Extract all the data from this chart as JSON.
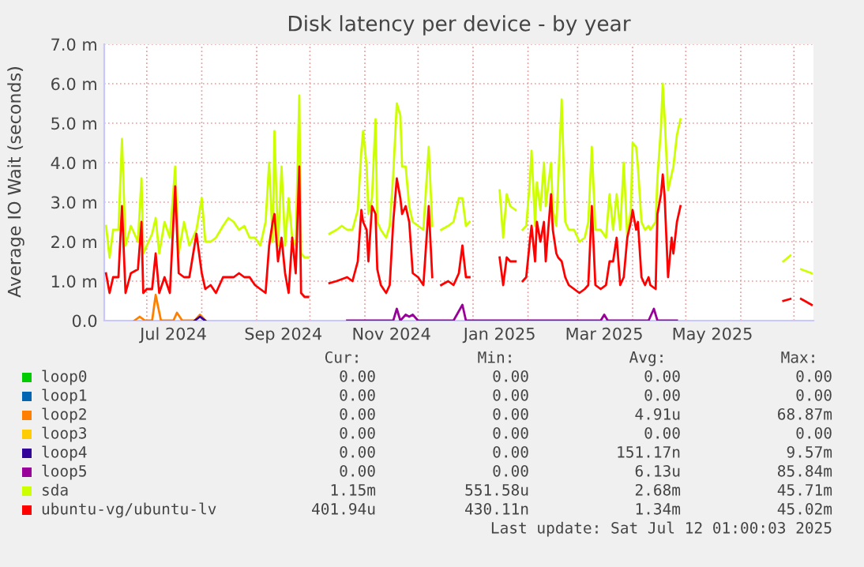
{
  "chart_data": {
    "type": "line",
    "title": "Disk latency per device - by year",
    "ylabel": "Average IO Wait (seconds)",
    "xlim": [
      "2024-06-07",
      "2025-07-12"
    ],
    "ylim": [
      0,
      7
    ],
    "yticks": [
      {
        "value": 0,
        "label": "0.0"
      },
      {
        "value": 1,
        "label": "1.0 m"
      },
      {
        "value": 2,
        "label": "2.0 m"
      },
      {
        "value": 3,
        "label": "3.0 m"
      },
      {
        "value": 4,
        "label": "4.0 m"
      },
      {
        "value": 5,
        "label": "5.0 m"
      },
      {
        "value": 6,
        "label": "6.0 m"
      },
      {
        "value": 7,
        "label": "7.0 m"
      }
    ],
    "xticks": [
      {
        "value": "2024-07-01",
        "label": null
      },
      {
        "value": "2024-07-16",
        "label": "Jul 2024"
      },
      {
        "value": "2024-08-01",
        "label": null
      },
      {
        "value": "2024-09-01",
        "label": null
      },
      {
        "value": "2024-09-16",
        "label": "Sep 2024"
      },
      {
        "value": "2024-10-01",
        "label": null
      },
      {
        "value": "2024-11-01",
        "label": null
      },
      {
        "value": "2024-11-16",
        "label": "Nov 2024"
      },
      {
        "value": "2024-12-01",
        "label": null
      },
      {
        "value": "2025-01-01",
        "label": null
      },
      {
        "value": "2025-01-16",
        "label": "Jan 2025"
      },
      {
        "value": "2025-02-01",
        "label": null
      },
      {
        "value": "2025-03-01",
        "label": null
      },
      {
        "value": "2025-03-16",
        "label": "Mar 2025"
      },
      {
        "value": "2025-04-01",
        "label": null
      },
      {
        "value": "2025-05-01",
        "label": null
      },
      {
        "value": "2025-05-16",
        "label": "May 2025"
      },
      {
        "value": "2025-06-01",
        "label": null
      },
      {
        "value": "2025-07-01",
        "label": null
      }
    ],
    "grid": true,
    "legend": "bottom",
    "x": [
      "2024-06-08",
      "2024-06-10",
      "2024-06-12",
      "2024-06-15",
      "2024-06-17",
      "2024-06-19",
      "2024-06-22",
      "2024-06-26",
      "2024-06-28",
      "2024-06-29",
      "2024-07-01",
      "2024-07-04",
      "2024-07-06",
      "2024-07-08",
      "2024-07-11",
      "2024-07-14",
      "2024-07-17",
      "2024-07-19",
      "2024-07-22",
      "2024-07-25",
      "2024-07-29",
      "2024-08-01",
      "2024-08-03",
      "2024-08-06",
      "2024-08-09",
      "2024-08-13",
      "2024-08-16",
      "2024-08-19",
      "2024-08-22",
      "2024-08-25",
      "2024-08-28",
      "2024-08-31",
      "2024-09-03",
      "2024-09-06",
      "2024-09-08",
      "2024-09-10",
      "2024-09-11",
      "2024-09-13",
      "2024-09-15",
      "2024-09-17",
      "2024-09-19",
      "2024-09-21",
      "2024-09-23",
      "2024-09-25",
      "2024-09-26",
      "2024-09-28",
      "2024-09-30",
      "2024-10-05",
      "2024-10-12",
      "2024-10-16",
      "2024-10-19",
      "2024-10-22",
      "2024-10-25",
      "2024-10-28",
      "2024-10-30",
      "2024-10-31",
      "2024-11-02",
      "2024-11-03",
      "2024-11-05",
      "2024-11-07",
      "2024-11-08",
      "2024-11-10",
      "2024-11-13",
      "2024-11-15",
      "2024-11-17",
      "2024-11-19",
      "2024-11-21",
      "2024-11-22",
      "2024-11-24",
      "2024-11-26",
      "2024-11-28",
      "2024-12-01",
      "2024-12-04",
      "2024-12-07",
      "2024-12-09",
      "2024-12-11",
      "2024-12-14",
      "2024-12-18",
      "2024-12-21",
      "2024-12-24",
      "2024-12-26",
      "2024-12-28",
      "2024-12-30",
      "2025-01-08",
      "2025-01-16",
      "2025-01-18",
      "2025-01-20",
      "2025-01-22",
      "2025-01-25",
      "2025-01-27",
      "2025-01-29",
      "2025-01-31",
      "2025-02-02",
      "2025-02-03",
      "2025-02-05",
      "2025-02-06",
      "2025-02-08",
      "2025-02-10",
      "2025-02-11",
      "2025-02-14",
      "2025-02-15",
      "2025-02-17",
      "2025-02-18",
      "2025-02-20",
      "2025-02-22",
      "2025-02-24",
      "2025-02-27",
      "2025-03-02",
      "2025-03-05",
      "2025-03-07",
      "2025-03-09",
      "2025-03-11",
      "2025-03-14",
      "2025-03-17",
      "2025-03-19",
      "2025-03-21",
      "2025-03-23",
      "2025-03-25",
      "2025-03-27",
      "2025-03-29",
      "2025-03-31",
      "2025-04-01",
      "2025-04-03",
      "2025-04-04",
      "2025-04-06",
      "2025-04-08",
      "2025-04-10",
      "2025-04-11",
      "2025-04-14",
      "2025-04-15",
      "2025-04-17",
      "2025-04-18",
      "2025-04-19",
      "2025-04-21",
      "2025-04-23",
      "2025-04-24",
      "2025-04-26",
      "2025-04-28",
      "2025-05-15",
      "2025-06-25",
      "2025-06-29",
      "2025-07-02",
      "2025-07-05",
      "2025-07-11"
    ],
    "series": [
      {
        "name": "loop0",
        "color": "#00cc00",
        "values": [
          null,
          null,
          null,
          null,
          null,
          null,
          null,
          null,
          null,
          null,
          null,
          null,
          null,
          null,
          null,
          null,
          null,
          null,
          null,
          null,
          null,
          null,
          null,
          null,
          null,
          null,
          null,
          null,
          null,
          null,
          null,
          null,
          null,
          null,
          null,
          null,
          null,
          null,
          null,
          null,
          null,
          null,
          null,
          null,
          null,
          null,
          null,
          null,
          null,
          null,
          null,
          null,
          null,
          null,
          null,
          null,
          null,
          null,
          null,
          null,
          null,
          null,
          null,
          null,
          null,
          null,
          null,
          null,
          null,
          null,
          null,
          null,
          null,
          null,
          null,
          null,
          null,
          null,
          null,
          null,
          null,
          null,
          null,
          null,
          null,
          null,
          null,
          null,
          null,
          null,
          null,
          null,
          null,
          null,
          null,
          null,
          null,
          null,
          null,
          null,
          null,
          null,
          null,
          null,
          null,
          null,
          null,
          null,
          null,
          null,
          null,
          null,
          null,
          null,
          null,
          null,
          null,
          null,
          null,
          null,
          null,
          null,
          null,
          null,
          null,
          null,
          null,
          null,
          null,
          null,
          null,
          null,
          null,
          null,
          null,
          null,
          null,
          null,
          null,
          null,
          null,
          null,
          null,
          null
        ]
      },
      {
        "name": "loop1",
        "color": "#0066b3",
        "values": [
          null,
          null,
          null,
          null,
          null,
          null,
          null,
          null,
          null,
          null,
          null,
          null,
          null,
          null,
          null,
          null,
          null,
          null,
          null,
          null,
          null,
          null,
          null,
          null,
          null,
          null,
          null,
          null,
          null,
          null,
          null,
          null,
          null,
          null,
          null,
          null,
          null,
          null,
          null,
          null,
          null,
          null,
          null,
          null,
          null,
          null,
          null,
          null,
          null,
          null,
          null,
          null,
          null,
          null,
          null,
          null,
          null,
          null,
          null,
          null,
          null,
          null,
          null,
          null,
          null,
          null,
          null,
          null,
          null,
          null,
          null,
          null,
          null,
          null,
          null,
          null,
          null,
          null,
          null,
          null,
          null,
          null,
          null,
          null,
          null,
          null,
          null,
          null,
          null,
          null,
          null,
          null,
          null,
          null,
          null,
          null,
          null,
          null,
          null,
          null,
          null,
          null,
          null,
          null,
          null,
          null,
          null,
          null,
          null,
          null,
          null,
          null,
          null,
          null,
          null,
          null,
          null,
          null,
          null,
          null,
          null,
          null,
          null,
          null,
          null,
          null,
          null,
          null,
          null,
          null,
          null,
          null,
          null,
          null,
          null,
          null,
          null,
          null,
          null,
          null,
          null,
          null,
          null,
          null
        ]
      },
      {
        "name": "loop2",
        "color": "#ff8000",
        "x": [
          "2024-06-24",
          "2024-06-27",
          "2024-06-30",
          "2024-07-04",
          "2024-07-06",
          "2024-07-09",
          "2024-07-16",
          "2024-07-18",
          "2024-07-21",
          "2024-07-28",
          "2024-07-31",
          "2024-08-03"
        ],
        "values": [
          0,
          0.1,
          0,
          0,
          0.65,
          0,
          0,
          0.2,
          0,
          0,
          0.15,
          0
        ]
      },
      {
        "name": "loop3",
        "color": "#ffcc00",
        "values": [
          null,
          null,
          null,
          null,
          null,
          null,
          null,
          null,
          null,
          null,
          null,
          null,
          null,
          null,
          null,
          null,
          null,
          null,
          null,
          null,
          null,
          null,
          null,
          null,
          null,
          null,
          null,
          null,
          null,
          null,
          null,
          null,
          null,
          null,
          null,
          null,
          null,
          null,
          null,
          null,
          null,
          null,
          null,
          null,
          null,
          null,
          null,
          null,
          null,
          null,
          null,
          null,
          null,
          null,
          null,
          null,
          null,
          null,
          null,
          null,
          null,
          null,
          null,
          null,
          null,
          null,
          null,
          null,
          null,
          null,
          null,
          null,
          null,
          null,
          null,
          null,
          null,
          null,
          null,
          null,
          null,
          null,
          null,
          null,
          null,
          null,
          null,
          null,
          null,
          null,
          null,
          null,
          null,
          null,
          null,
          null,
          null,
          null,
          null,
          null,
          null,
          null,
          null,
          null,
          null,
          null,
          null,
          null,
          null,
          null,
          null,
          null,
          null,
          null,
          null,
          null,
          null,
          null,
          null,
          null,
          null,
          null,
          null,
          null,
          null,
          null,
          null,
          null,
          null,
          null,
          null,
          null,
          null,
          null,
          null,
          null,
          null,
          null,
          null,
          null,
          null,
          null,
          null,
          null
        ]
      },
      {
        "name": "loop4",
        "color": "#330099",
        "x": [
          "2024-07-28",
          "2024-07-31",
          "2024-08-03"
        ],
        "values": [
          0,
          0.1,
          0
        ]
      },
      {
        "name": "loop5",
        "color": "#990099",
        "x": [
          "2024-10-22",
          "2024-11-17",
          "2024-11-19",
          "2024-11-21",
          "2024-11-24",
          "2024-11-26",
          "2024-11-28",
          "2024-12-01",
          "2024-12-21",
          "2024-12-26",
          "2024-12-28",
          "2025-03-14",
          "2025-03-16",
          "2025-03-18",
          "2025-04-10",
          "2025-04-13",
          "2025-04-15",
          "2025-04-26"
        ],
        "values": [
          0,
          0,
          0.3,
          0,
          0.15,
          0.1,
          0.15,
          0,
          0,
          0.4,
          0,
          0,
          0.15,
          0,
          0,
          0.3,
          0,
          0
        ]
      },
      {
        "name": "sda",
        "color": "#ccff00",
        "values": [
          2.4,
          1.6,
          2.3,
          2.3,
          4.6,
          1.9,
          2.4,
          2.0,
          3.6,
          1.7,
          1.9,
          2.2,
          2.6,
          1.7,
          2.5,
          2.1,
          3.9,
          1.7,
          2.5,
          1.9,
          2.3,
          3.1,
          2.0,
          2.0,
          2.1,
          2.4,
          2.6,
          2.5,
          2.3,
          2.4,
          2.1,
          2.1,
          1.9,
          2.5,
          4.0,
          2.0,
          4.8,
          1.9,
          3.9,
          1.9,
          3.1,
          2.1,
          1.9,
          5.7,
          1.7,
          1.6,
          1.6,
          null,
          2.2,
          2.3,
          2.4,
          2.3,
          2.3,
          2.8,
          4.3,
          4.8,
          3.9,
          2.7,
          3.1,
          5.1,
          2.5,
          2.3,
          2.1,
          2.4,
          3.7,
          5.5,
          5.2,
          3.9,
          3.9,
          2.9,
          2.5,
          2.4,
          2.3,
          4.4,
          2.4,
          null,
          2.3,
          2.4,
          2.5,
          3.1,
          3.1,
          2.4,
          2.5,
          null,
          3.3,
          2.1,
          3.2,
          2.9,
          2.8,
          null,
          2.3,
          2.4,
          3.5,
          4.3,
          2.4,
          3.5,
          2.8,
          4.0,
          2.9,
          4.0,
          2.8,
          2.4,
          3.5,
          5.6,
          2.5,
          2.3,
          2.3,
          2.0,
          2.1,
          2.5,
          4.4,
          2.3,
          2.3,
          2.1,
          3.2,
          2.3,
          3.2,
          2.3,
          4.0,
          2.1,
          2.8,
          4.5,
          4.4,
          3.9,
          2.5,
          2.3,
          2.4,
          2.3,
          2.5,
          3.6,
          4.9,
          6.0,
          5.2,
          3.3,
          3.7,
          3.9,
          4.7,
          5.1,
          null,
          1.5,
          1.65,
          null,
          1.3,
          1.2
        ]
      },
      {
        "name": "ubuntu-vg/ubuntu-lv",
        "color": "#ff0000",
        "values": [
          1.2,
          0.7,
          1.1,
          1.1,
          2.9,
          0.7,
          1.2,
          1.3,
          2.5,
          0.7,
          0.8,
          0.8,
          1.7,
          0.7,
          1.1,
          0.7,
          3.4,
          1.2,
          1.1,
          1.1,
          2.2,
          1.2,
          0.8,
          0.9,
          0.7,
          1.1,
          1.1,
          1.1,
          1.2,
          1.1,
          1.1,
          0.9,
          0.8,
          0.7,
          1.9,
          2.5,
          2.7,
          1.5,
          2.1,
          1.2,
          0.7,
          2.1,
          1.2,
          3.9,
          0.7,
          0.6,
          0.6,
          null,
          0.95,
          1.0,
          1.05,
          1.1,
          1.0,
          1.5,
          2.8,
          2.5,
          2.3,
          1.5,
          2.9,
          2.7,
          1.3,
          0.9,
          0.7,
          0.9,
          2.5,
          3.6,
          3.1,
          2.7,
          2.9,
          2.5,
          1.2,
          1.1,
          0.9,
          2.9,
          1.1,
          null,
          0.9,
          1.0,
          0.9,
          1.2,
          1.9,
          1.1,
          1.1,
          null,
          1.6,
          0.9,
          1.6,
          1.5,
          1.5,
          null,
          1.0,
          1.1,
          2.0,
          2.4,
          1.5,
          2.5,
          2.0,
          2.5,
          1.5,
          3.2,
          2.3,
          1.7,
          1.6,
          1.5,
          1.1,
          0.9,
          0.8,
          0.7,
          0.8,
          0.9,
          2.9,
          0.9,
          0.8,
          0.9,
          1.5,
          1.5,
          2.1,
          0.9,
          1.1,
          2.1,
          2.5,
          2.8,
          2.3,
          2.5,
          1.1,
          0.9,
          1.1,
          0.9,
          0.8,
          2.7,
          3.2,
          3.7,
          3.2,
          1.1,
          2.1,
          1.7,
          2.5,
          2.9,
          null,
          0.5,
          0.55,
          null,
          0.55,
          0.4
        ]
      }
    ],
    "annotations": [
      "Cur:",
      "Min:",
      "Avg:",
      "Max:",
      "0.00",
      "0.00",
      "0.00",
      "0.00",
      "0.00",
      "0.00",
      "0.00",
      "0.00",
      "0.00",
      "0.00",
      "4.91u",
      "68.87m",
      "0.00",
      "0.00",
      "0.00",
      "0.00",
      "0.00",
      "0.00",
      "151.17n",
      "9.57m",
      "0.00",
      "0.00",
      "6.13u",
      "85.84m",
      "1.15m",
      "551.58u",
      "2.68m",
      "45.71m",
      "401.94u",
      "430.11n",
      "1.34m",
      "45.02m",
      "Last update: Sat Jul 12 01:00:03 2025"
    ]
  }
}
